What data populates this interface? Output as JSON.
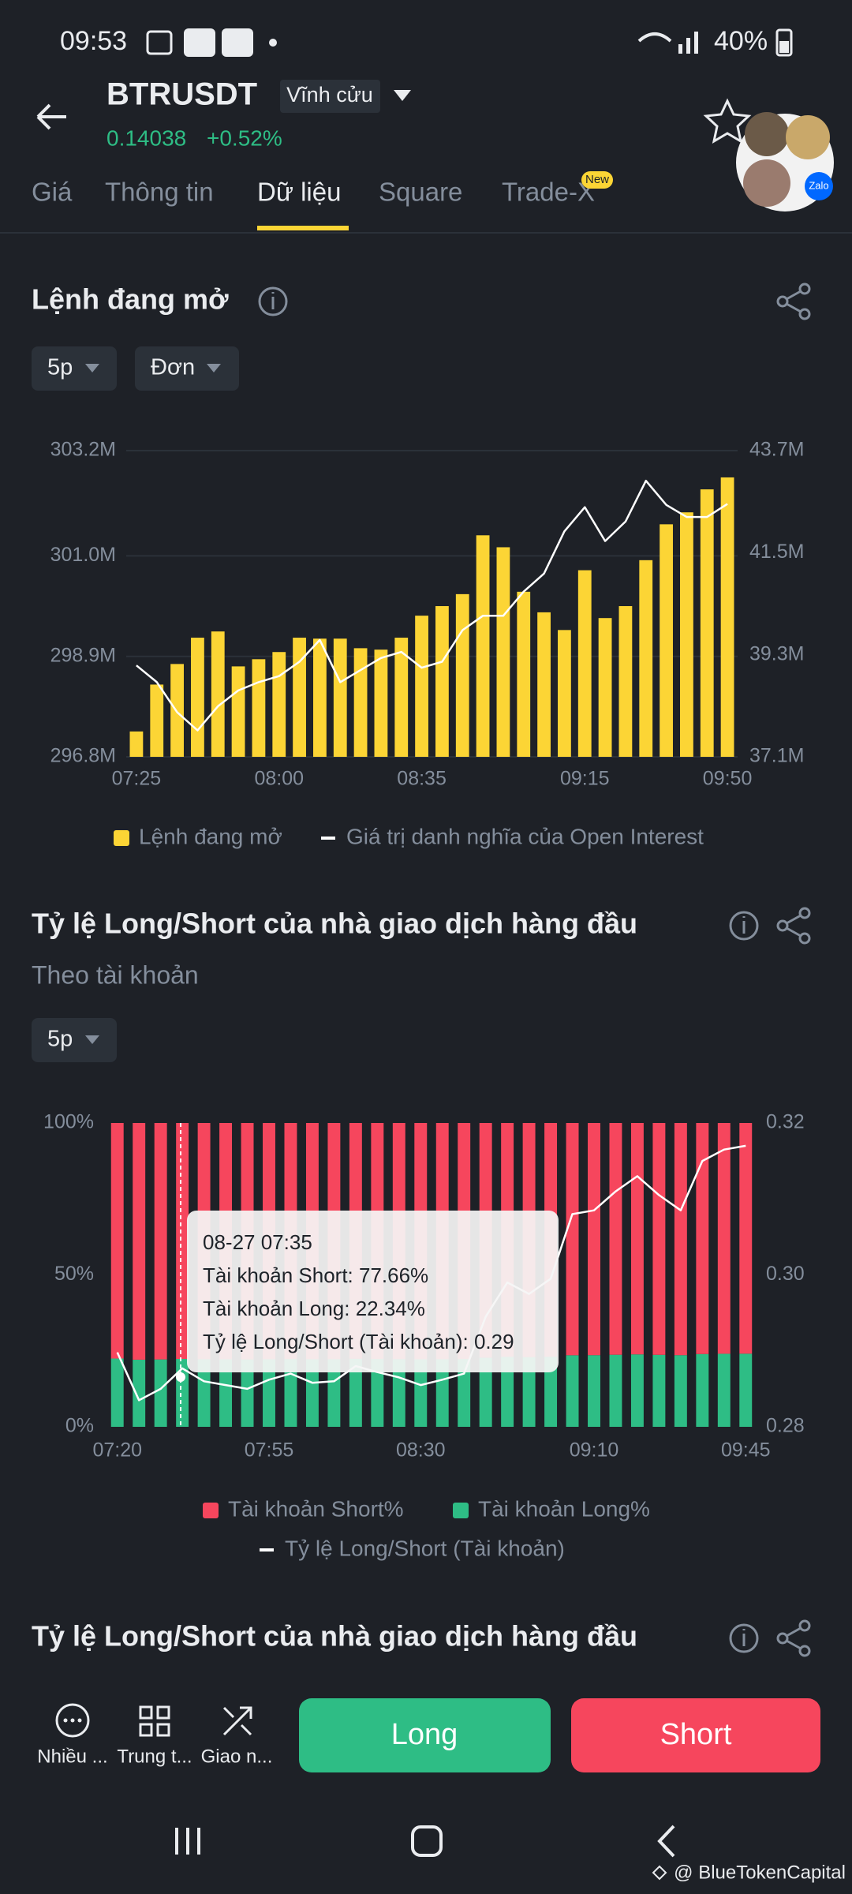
{
  "status_bar": {
    "time": "09:53",
    "battery": "40%"
  },
  "header": {
    "symbol": "BTRUSDT",
    "contract": "Vĩnh cửu",
    "price": "0.14038",
    "change": "+0.52%"
  },
  "tabs": [
    "Giá",
    "Thông tin",
    "Dữ liệu",
    "Square",
    "Trade-X"
  ],
  "tab_badge": "New",
  "filters1": [
    "5p",
    "Đơn"
  ],
  "chart_data": [
    {
      "type": "bar_line",
      "title": "Lệnh đang mở",
      "categories": [
        "07:25",
        null,
        null,
        null,
        null,
        null,
        null,
        "08:00",
        null,
        null,
        null,
        null,
        null,
        null,
        "08:35",
        null,
        null,
        null,
        null,
        null,
        null,
        null,
        "09:15",
        null,
        null,
        null,
        null,
        null,
        null,
        "09:50"
      ],
      "series": [
        {
          "name": "Lệnh đang mở",
          "type": "bar",
          "color": "#fcd535",
          "values": [
            297.33,
            298.31,
            298.74,
            299.29,
            299.42,
            298.69,
            298.84,
            298.99,
            299.29,
            299.27,
            299.27,
            299.07,
            299.04,
            299.29,
            299.75,
            299.95,
            300.2,
            301.43,
            301.18,
            300.25,
            299.82,
            299.45,
            300.7,
            299.7,
            299.95,
            300.91,
            301.66,
            301.91,
            302.39,
            302.64
          ]
        },
        {
          "name": "Giá trị danh nghĩa của Open Interest",
          "type": "line",
          "axis": "y2",
          "color": "#ffffff",
          "values": [
            39.07,
            38.71,
            38.06,
            37.67,
            38.19,
            38.53,
            38.71,
            38.84,
            39.15,
            39.62,
            38.71,
            38.97,
            39.23,
            39.36,
            39.02,
            39.15,
            39.83,
            40.14,
            40.14,
            40.66,
            41.05,
            41.96,
            42.48,
            41.75,
            42.17,
            43.05,
            42.53,
            42.27,
            42.27,
            42.55
          ]
        }
      ],
      "ylim": [
        296.8,
        303.2
      ],
      "yticks": [
        {
          "value": 296.8,
          "label": "296.8M"
        },
        {
          "value": 298.9,
          "label": "298.9M"
        },
        {
          "value": 301.0,
          "label": "301.0M"
        },
        {
          "value": 303.2,
          "label": "303.2M"
        }
      ],
      "y2lim": [
        37.1,
        43.7
      ],
      "y2ticks": [
        {
          "value": 37.1,
          "label": "37.1M"
        },
        {
          "value": 39.3,
          "label": "39.3M"
        },
        {
          "value": 41.5,
          "label": "41.5M"
        },
        {
          "value": 43.7,
          "label": "43.7M"
        }
      ],
      "grid": true
    },
    {
      "type": "stacked_bar_line",
      "title": "Tỷ lệ Long/Short của nhà giao dịch hàng đầu",
      "categories": [
        "07:20",
        null,
        null,
        null,
        null,
        null,
        null,
        "07:55",
        null,
        null,
        null,
        null,
        null,
        null,
        "08:30",
        null,
        null,
        null,
        null,
        null,
        null,
        null,
        "09:10",
        null,
        null,
        null,
        null,
        null,
        null,
        "09:45"
      ],
      "series": [
        {
          "name": "Tài khoản Short%",
          "type": "bar",
          "color": "#f6465d",
          "values": [
            77.53,
            77.91,
            77.82,
            77.66,
            77.76,
            77.79,
            77.82,
            77.75,
            77.7,
            77.77,
            77.76,
            77.64,
            77.69,
            77.73,
            77.79,
            77.75,
            77.7,
            77.25,
            76.98,
            77.07,
            76.95,
            76.45,
            76.42,
            76.28,
            76.16,
            76.31,
            76.42,
            76.05,
            75.96,
            75.93
          ]
        },
        {
          "name": "Tài khoản Long%",
          "type": "bar",
          "color": "#2ebd85",
          "values": [
            22.47,
            22.09,
            22.18,
            22.34,
            22.24,
            22.21,
            22.18,
            22.25,
            22.3,
            22.23,
            22.24,
            22.36,
            22.31,
            22.27,
            22.21,
            22.25,
            22.3,
            22.75,
            23.02,
            22.93,
            23.05,
            23.55,
            23.58,
            23.72,
            23.84,
            23.69,
            23.58,
            23.95,
            24.04,
            24.07
          ]
        },
        {
          "name": "Tỷ lệ Long/Short (Tài khoản)",
          "type": "line",
          "axis": "y2",
          "color": "#ffffff",
          "values": [
            0.2898,
            0.2835,
            0.285,
            0.2877,
            0.286,
            0.2855,
            0.285,
            0.2862,
            0.287,
            0.2858,
            0.286,
            0.288,
            0.2872,
            0.2865,
            0.2855,
            0.2862,
            0.287,
            0.2945,
            0.299,
            0.2975,
            0.2995,
            0.308,
            0.3085,
            0.311,
            0.313,
            0.3105,
            0.3085,
            0.315,
            0.3165,
            0.317
          ]
        }
      ],
      "ylim": [
        0,
        100
      ],
      "yticks": [
        {
          "value": 0,
          "label": "0%"
        },
        {
          "value": 50,
          "label": "50%"
        },
        {
          "value": 100,
          "label": "100%"
        }
      ],
      "y2lim": [
        0.28,
        0.32
      ],
      "y2ticks": [
        0.28,
        {
          "value": 0.3,
          "label": "0.30"
        },
        0.32
      ],
      "grid": false
    }
  ],
  "section2_subtitle": "Theo tài khoản",
  "filters2": [
    "5p"
  ],
  "tooltip": {
    "time": "08-27 07:35",
    "lines": [
      "Tài khoản Short: 77.66%",
      "Tài khoản Long: 22.34%",
      "Tỷ lệ Long/Short (Tài khoản): 0.29"
    ]
  },
  "section3_title": "Tỷ lệ Long/Short của nhà giao dịch hàng đầu",
  "bottom_bar": {
    "actions": [
      "Nhiều ...",
      "Trung t...",
      "Giao n..."
    ],
    "long": "Long",
    "short": "Short"
  },
  "avatar_label": "Zalo",
  "watermark": "@ BlueTokenCapital"
}
